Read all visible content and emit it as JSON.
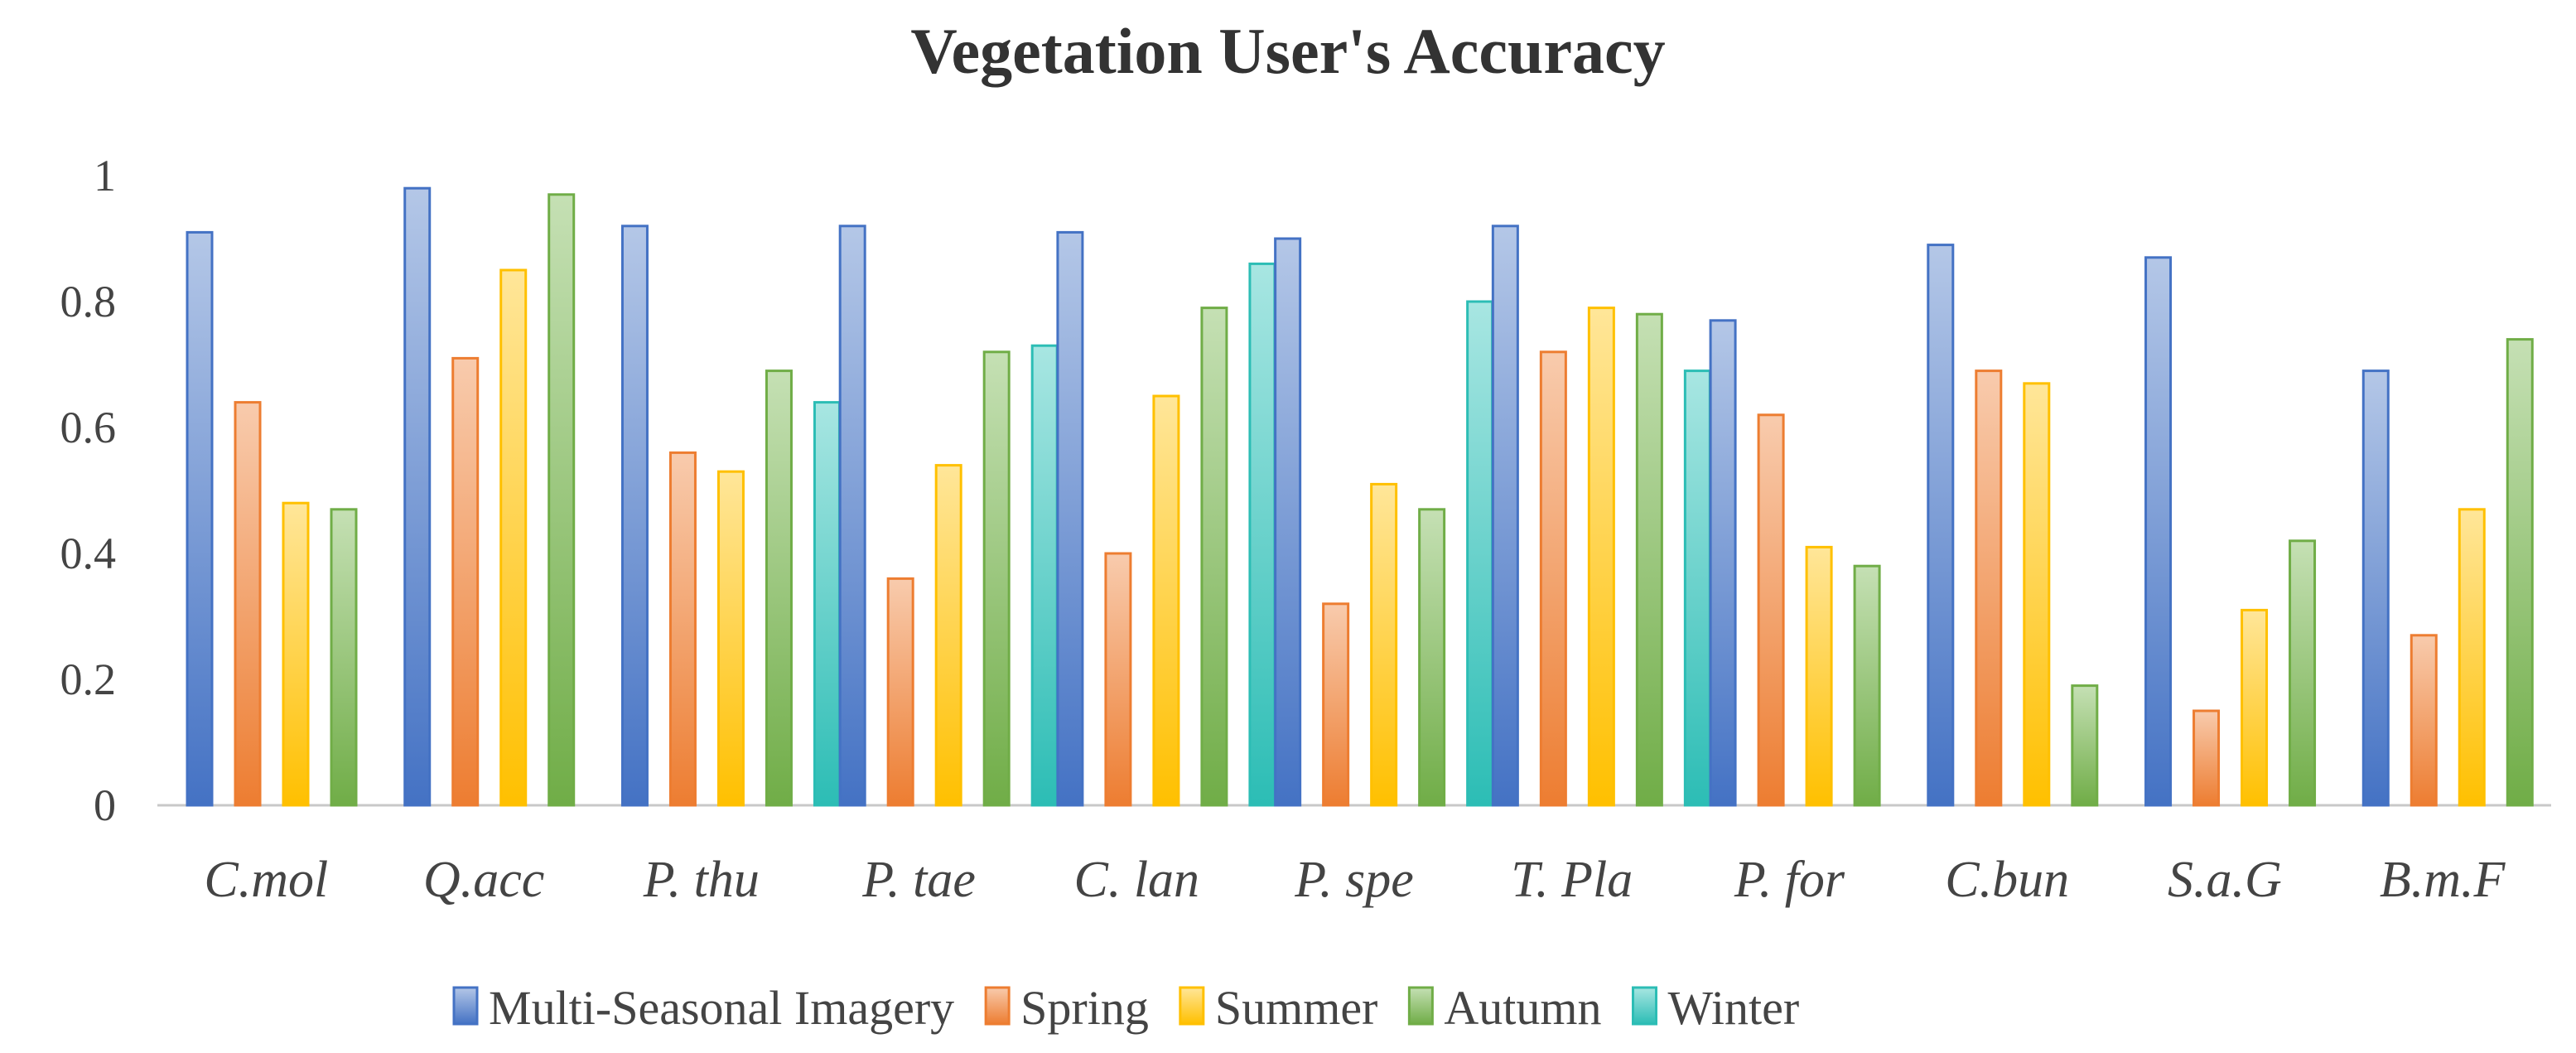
{
  "chart_data": {
    "type": "bar",
    "title": "Vegetation User's Accuracy",
    "xlabel": "",
    "ylabel": "",
    "ylim": [
      0,
      1
    ],
    "yticks": [
      "0",
      "0.2",
      "0.4",
      "0.6",
      "0.8",
      "1"
    ],
    "grid": false,
    "legend_position": "bottom",
    "categories": [
      "C.mol",
      "Q.acc",
      "P. thu",
      "P. tae",
      "C. lan",
      "P. spe",
      "T. Pla",
      "P. for",
      "C.bun",
      "S.a.G",
      "B.m.F"
    ],
    "series": [
      {
        "name": "Multi-Seasonal Imagery",
        "color": "#4472C4",
        "light": "#B4C7E7",
        "values": [
          0.91,
          0.98,
          0.92,
          0.92,
          0.91,
          0.9,
          0.92,
          0.77,
          0.89,
          0.87,
          0.69
        ]
      },
      {
        "name": "Spring",
        "color": "#ED7D31",
        "light": "#F8CBAD",
        "values": [
          0.64,
          0.71,
          0.56,
          0.36,
          0.4,
          0.32,
          0.72,
          0.62,
          0.69,
          0.15,
          0.27
        ]
      },
      {
        "name": "Summer",
        "color": "#FFC000",
        "light": "#FFE699",
        "values": [
          0.48,
          0.85,
          0.53,
          0.54,
          0.65,
          0.51,
          0.79,
          0.41,
          0.67,
          0.31,
          0.47
        ]
      },
      {
        "name": "Autumn",
        "color": "#70AD47",
        "light": "#C5E0B4",
        "values": [
          0.47,
          0.97,
          0.69,
          0.72,
          0.79,
          0.47,
          0.78,
          0.38,
          0.19,
          0.42,
          0.74
        ]
      },
      {
        "name": "Winter",
        "color": "#2CBDB5",
        "light": "#A8E6E2",
        "values": [
          null,
          null,
          0.64,
          0.73,
          0.86,
          0.8,
          0.69,
          null,
          null,
          null,
          null
        ]
      }
    ]
  }
}
